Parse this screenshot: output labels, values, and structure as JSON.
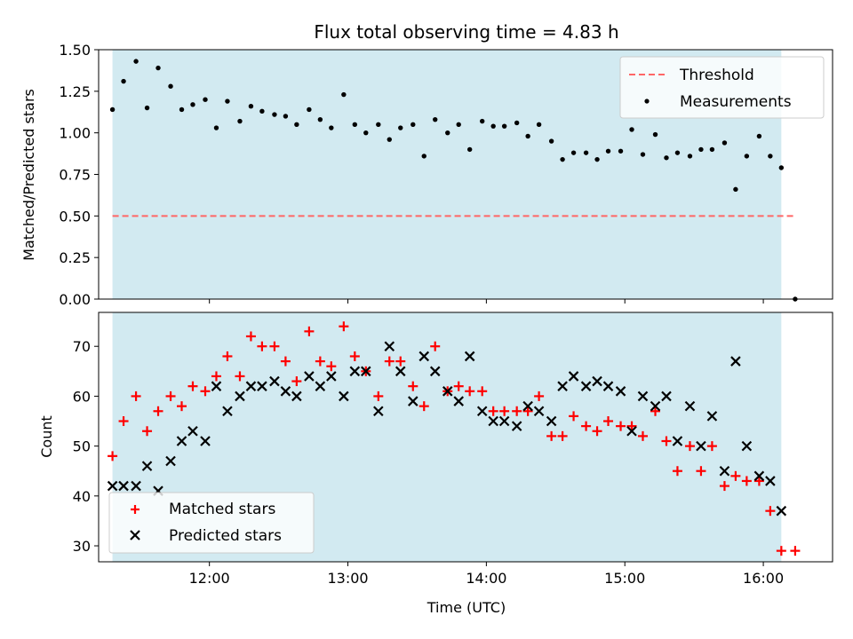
{
  "title": "Flux total observing time = 4.83 h",
  "colors": {
    "shade": "#add8e6",
    "threshold": "#ff6666",
    "matched": "#ff0000",
    "predicted": "#000000",
    "measurement": "#000000"
  },
  "chart_data": [
    {
      "type": "scatter",
      "panel": "top",
      "ylabel": "Matched/Predicted stars",
      "xlim": [
        11.2,
        16.5
      ],
      "ylim": [
        0.0,
        1.5
      ],
      "yticks": [
        0.0,
        0.25,
        0.5,
        0.75,
        1.0,
        1.25,
        1.5
      ],
      "ytick_labels": [
        "0.00",
        "0.25",
        "0.50",
        "0.75",
        "1.00",
        "1.25",
        "1.50"
      ],
      "observing_window": [
        11.3,
        16.13
      ],
      "threshold": {
        "label": "Threshold",
        "value": 0.5,
        "x_range": [
          11.3,
          16.23
        ]
      },
      "legend_position": "top-right",
      "series": [
        {
          "name": "Measurements",
          "x": [
            11.3,
            11.38,
            11.47,
            11.55,
            11.63,
            11.72,
            11.8,
            11.88,
            11.97,
            12.05,
            12.13,
            12.22,
            12.3,
            12.38,
            12.47,
            12.55,
            12.63,
            12.72,
            12.8,
            12.88,
            12.97,
            13.05,
            13.13,
            13.22,
            13.3,
            13.38,
            13.47,
            13.55,
            13.63,
            13.72,
            13.8,
            13.88,
            13.97,
            14.05,
            14.13,
            14.22,
            14.3,
            14.38,
            14.47,
            14.55,
            14.63,
            14.72,
            14.8,
            14.88,
            14.97,
            15.05,
            15.13,
            15.22,
            15.3,
            15.38,
            15.47,
            15.55,
            15.63,
            15.72,
            15.8,
            15.88,
            15.97,
            16.05,
            16.13,
            16.23
          ],
          "y": [
            1.14,
            1.31,
            1.43,
            1.15,
            1.39,
            1.28,
            1.14,
            1.17,
            1.2,
            1.03,
            1.19,
            1.07,
            1.16,
            1.13,
            1.11,
            1.1,
            1.05,
            1.14,
            1.08,
            1.03,
            1.23,
            1.05,
            1.0,
            1.05,
            0.96,
            1.03,
            1.05,
            0.86,
            1.08,
            1.0,
            1.05,
            0.9,
            1.07,
            1.04,
            1.04,
            1.06,
            0.98,
            1.05,
            0.95,
            0.84,
            0.88,
            0.88,
            0.84,
            0.89,
            0.89,
            1.02,
            0.87,
            0.99,
            0.85,
            0.88,
            0.86,
            0.9,
            0.9,
            0.94,
            0.66,
            0.86,
            0.98,
            0.86,
            0.79,
            0.0
          ]
        }
      ]
    },
    {
      "type": "scatter",
      "panel": "bottom",
      "ylabel": "Count",
      "xlabel": "Time (UTC)",
      "xlim": [
        11.2,
        16.5
      ],
      "ylim": [
        26.8,
        76.8
      ],
      "yticks": [
        30,
        40,
        50,
        60,
        70
      ],
      "ytick_labels": [
        "30",
        "40",
        "50",
        "60",
        "70"
      ],
      "xticks": [
        12,
        13,
        14,
        15,
        16
      ],
      "xtick_labels": [
        "12:00",
        "13:00",
        "14:00",
        "15:00",
        "16:00"
      ],
      "observing_window": [
        11.3,
        16.13
      ],
      "legend_position": "bottom-left",
      "series": [
        {
          "name": "Matched stars",
          "marker": "+",
          "x": [
            11.3,
            11.38,
            11.47,
            11.55,
            11.63,
            11.72,
            11.8,
            11.88,
            11.97,
            12.05,
            12.13,
            12.22,
            12.3,
            12.38,
            12.47,
            12.55,
            12.63,
            12.72,
            12.8,
            12.88,
            12.97,
            13.05,
            13.13,
            13.22,
            13.3,
            13.38,
            13.47,
            13.55,
            13.63,
            13.72,
            13.8,
            13.88,
            13.97,
            14.05,
            14.13,
            14.22,
            14.3,
            14.38,
            14.47,
            14.55,
            14.63,
            14.72,
            14.8,
            14.88,
            14.97,
            15.05,
            15.13,
            15.22,
            15.3,
            15.38,
            15.47,
            15.55,
            15.63,
            15.72,
            15.8,
            15.88,
            15.97,
            16.05,
            16.13,
            16.23
          ],
          "y": [
            48,
            55,
            60,
            53,
            57,
            60,
            58,
            62,
            61,
            64,
            68,
            64,
            72,
            70,
            70,
            67,
            63,
            73,
            67,
            66,
            74,
            68,
            65,
            60,
            67,
            67,
            62,
            58,
            70,
            61,
            62,
            61,
            61,
            57,
            57,
            57,
            57,
            60,
            52,
            52,
            56,
            54,
            53,
            55,
            54,
            54,
            52,
            57,
            51,
            45,
            50,
            45,
            50,
            42,
            44,
            43,
            43,
            37,
            29,
            29
          ]
        },
        {
          "name": "Predicted stars",
          "marker": "x",
          "x": [
            11.3,
            11.38,
            11.47,
            11.55,
            11.63,
            11.72,
            11.8,
            11.88,
            11.97,
            12.05,
            12.13,
            12.22,
            12.3,
            12.38,
            12.47,
            12.55,
            12.63,
            12.72,
            12.8,
            12.88,
            12.97,
            13.05,
            13.13,
            13.22,
            13.3,
            13.38,
            13.47,
            13.55,
            13.63,
            13.72,
            13.8,
            13.88,
            13.97,
            14.05,
            14.13,
            14.22,
            14.3,
            14.38,
            14.47,
            14.55,
            14.63,
            14.72,
            14.8,
            14.88,
            14.97,
            15.05,
            15.13,
            15.22,
            15.3,
            15.38,
            15.47,
            15.55,
            15.63,
            15.72,
            15.8,
            15.88,
            15.97,
            16.05,
            16.13
          ],
          "y": [
            42,
            42,
            42,
            46,
            41,
            47,
            51,
            53,
            51,
            62,
            57,
            60,
            62,
            62,
            63,
            61,
            60,
            64,
            62,
            64,
            60,
            65,
            65,
            57,
            70,
            65,
            59,
            68,
            65,
            61,
            59,
            68,
            57,
            55,
            55,
            54,
            58,
            57,
            55,
            62,
            64,
            62,
            63,
            62,
            61,
            53,
            60,
            58,
            60,
            51,
            58,
            50,
            56,
            45,
            67,
            50,
            44,
            43,
            37
          ]
        }
      ]
    }
  ]
}
